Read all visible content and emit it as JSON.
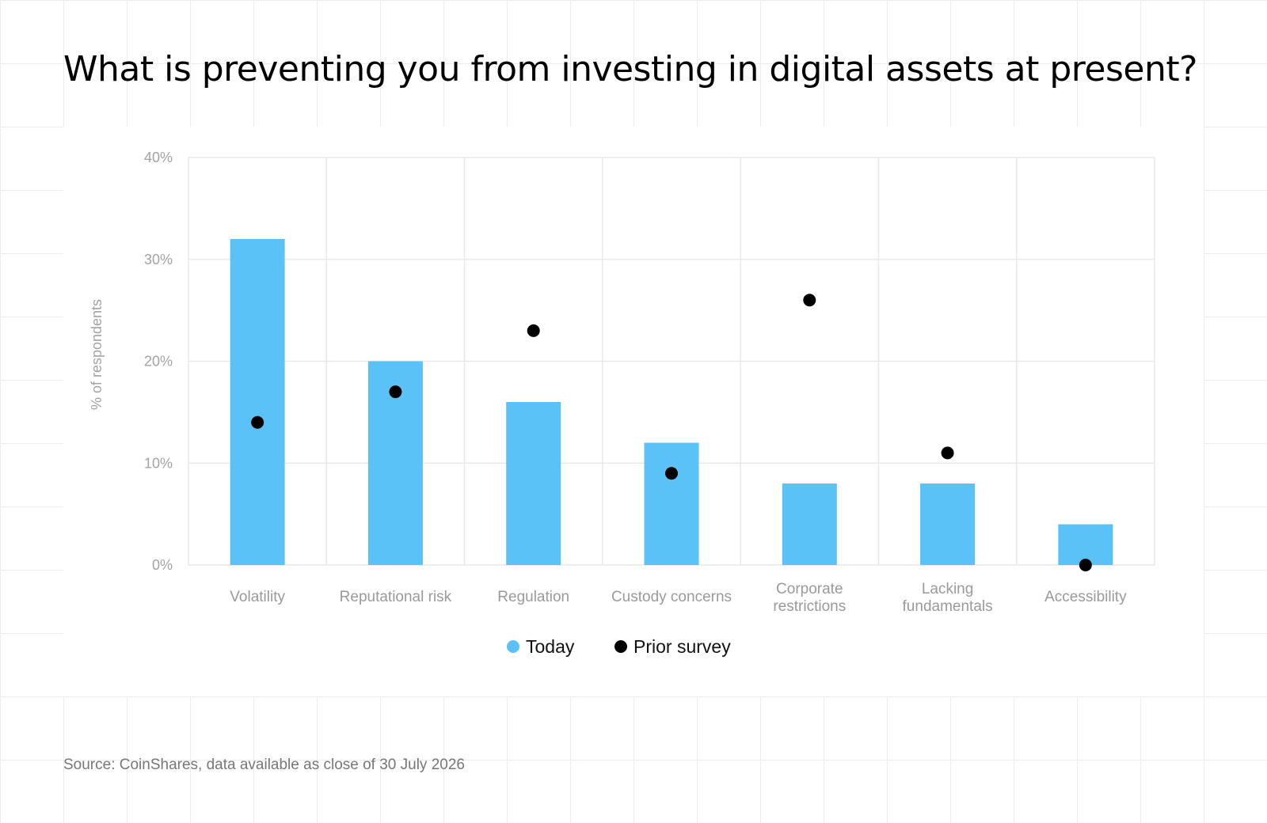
{
  "title": "What is preventing you from investing in digital assets at present?",
  "source": "Source: CoinShares, data available as close of 30 July 2026",
  "colors": {
    "today": "#5bc2f7",
    "prior": "#000000",
    "grid": "#e9e9e9",
    "axis_text": "#a3a3a3"
  },
  "chart_data": {
    "type": "bar",
    "categories": [
      [
        "Volatility"
      ],
      [
        "Reputational risk"
      ],
      [
        "Regulation"
      ],
      [
        "Custody concerns"
      ],
      [
        "Corporate",
        "restrictions"
      ],
      [
        "Lacking",
        "fundamentals"
      ],
      [
        "Accessibility"
      ]
    ],
    "series": [
      {
        "name": "Today",
        "type": "bar",
        "values": [
          32,
          20,
          16,
          12,
          8,
          8,
          4
        ]
      },
      {
        "name": "Prior survey",
        "type": "scatter",
        "values": [
          14,
          17,
          23,
          9,
          26,
          11,
          0
        ]
      }
    ],
    "ylabel": "% of respondents",
    "ylim": [
      0,
      40
    ],
    "yticks": [
      0,
      10,
      20,
      30,
      40
    ],
    "ytick_labels": [
      "0%",
      "10%",
      "20%",
      "30%",
      "40%"
    ],
    "grid": true,
    "legend": "bottom-center"
  }
}
